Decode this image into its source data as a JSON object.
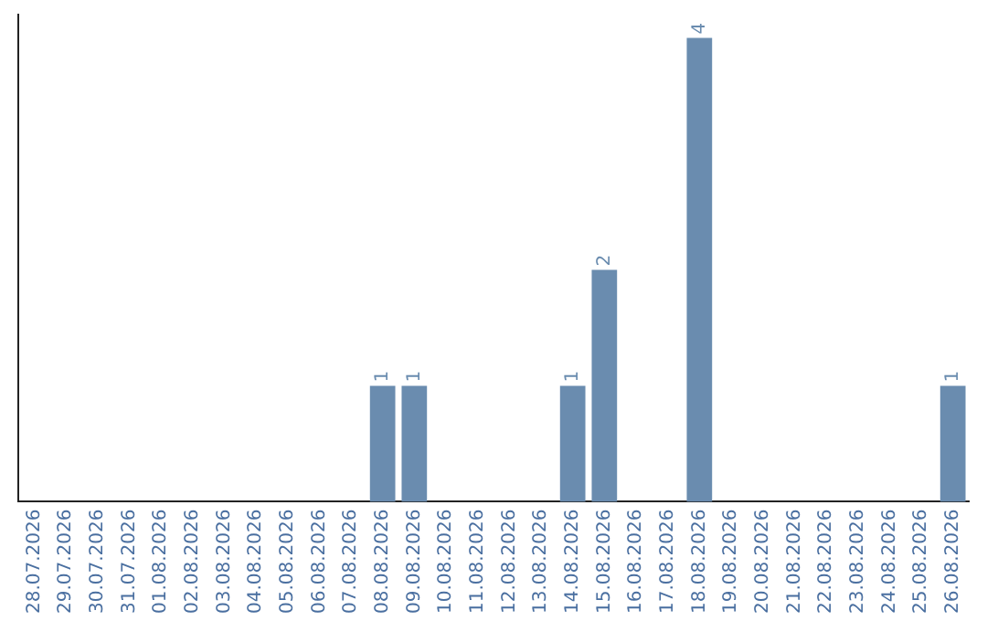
{
  "chart_data": {
    "type": "bar",
    "categories": [
      "28.07.2026",
      "29.07.2026",
      "30.07.2026",
      "31.07.2026",
      "01.08.2026",
      "02.08.2026",
      "03.08.2026",
      "04.08.2026",
      "05.08.2026",
      "06.08.2026",
      "07.08.2026",
      "08.08.2026",
      "09.08.2026",
      "10.08.2026",
      "11.08.2026",
      "12.08.2026",
      "13.08.2026",
      "14.08.2026",
      "15.08.2026",
      "16.08.2026",
      "17.08.2026",
      "18.08.2026",
      "19.08.2026",
      "20.08.2026",
      "21.08.2026",
      "22.08.2026",
      "23.08.2026",
      "24.08.2026",
      "25.08.2026",
      "26.08.2026"
    ],
    "values": [
      0,
      0,
      0,
      0,
      0,
      0,
      0,
      0,
      0,
      0,
      0,
      1,
      1,
      0,
      0,
      0,
      0,
      1,
      2,
      0,
      0,
      4,
      0,
      0,
      0,
      0,
      0,
      0,
      0,
      1
    ],
    "value_labels": [
      null,
      null,
      null,
      null,
      null,
      null,
      null,
      null,
      null,
      null,
      null,
      "1",
      "1",
      null,
      null,
      null,
      null,
      "1",
      "2",
      null,
      null,
      "4",
      null,
      null,
      null,
      null,
      null,
      null,
      null,
      "1"
    ],
    "color": "#6a8caf",
    "grid": false,
    "legend": false,
    "tick_labels": "x"
  }
}
